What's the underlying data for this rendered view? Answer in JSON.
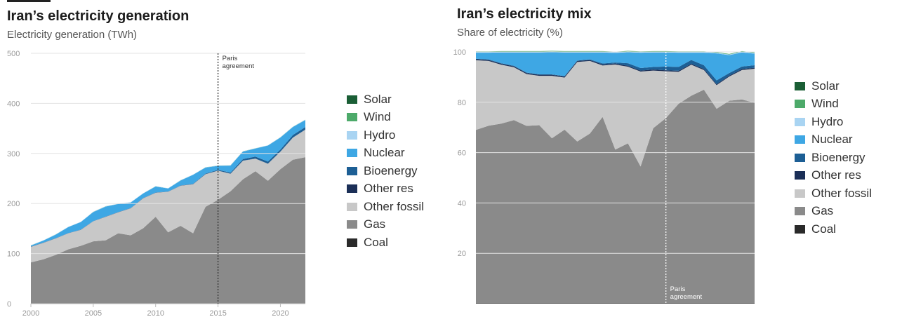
{
  "left_chart": {
    "title": "Iran’s electricity generation",
    "subtitle": "Electricity generation (TWh)"
  },
  "right_chart": {
    "title": "Iran’s electricity mix",
    "subtitle": "Share of electricity (%)"
  },
  "legend": [
    {
      "label": "Solar",
      "color": "#1a5e35"
    },
    {
      "label": "Wind",
      "color": "#4daa6a"
    },
    {
      "label": "Hydro",
      "color": "#a9d4f2"
    },
    {
      "label": "Nuclear",
      "color": "#3ea7e4"
    },
    {
      "label": "Bioenergy",
      "color": "#1d5f95"
    },
    {
      "label": "Other res",
      "color": "#1b2f57"
    },
    {
      "label": "Other fossil",
      "color": "#c8c8c8"
    },
    {
      "label": "Gas",
      "color": "#8a8a8a"
    },
    {
      "label": "Coal",
      "color": "#2a2a2a"
    }
  ],
  "chart_data": [
    {
      "type": "area",
      "title": "Iran’s electricity generation",
      "subtitle": "Electricity generation (TWh)",
      "xlabel": "",
      "ylabel": "",
      "x": [
        2000,
        2001,
        2002,
        2003,
        2004,
        2005,
        2006,
        2007,
        2008,
        2009,
        2010,
        2011,
        2012,
        2013,
        2014,
        2015,
        2016,
        2017,
        2018,
        2019,
        2020,
        2021,
        2022
      ],
      "xlim": [
        2000,
        2022
      ],
      "ylim": [
        0,
        500
      ],
      "x_ticks": [
        2000,
        2005,
        2010,
        2015,
        2020
      ],
      "y_ticks": [
        0,
        100,
        200,
        300,
        400,
        500
      ],
      "stack_order_bottom_to_top": [
        "Coal",
        "Gas",
        "Other fossil",
        "Other res",
        "Bioenergy",
        "Nuclear",
        "Hydro",
        "Wind",
        "Solar"
      ],
      "series": [
        {
          "name": "Coal",
          "color": "#2a2a2a",
          "values": [
            0.5,
            0.5,
            0.5,
            0.5,
            0.5,
            0.5,
            0.5,
            0.5,
            0.5,
            0.5,
            0.5,
            0.5,
            0.5,
            0.5,
            0.5,
            0.5,
            0.5,
            0.5,
            0.5,
            0.5,
            0.5,
            0.5,
            0.5
          ]
        },
        {
          "name": "Gas",
          "color": "#8a8a8a",
          "values": [
            82,
            88,
            97,
            108,
            115,
            124,
            126,
            140,
            136,
            150,
            173,
            142,
            155,
            140,
            193,
            207,
            224,
            248,
            264,
            245,
            268,
            287,
            292
          ]
        },
        {
          "name": "Other fossil",
          "color": "#c8c8c8",
          "values": [
            31,
            33,
            33,
            32,
            32,
            40,
            47,
            42,
            54,
            60,
            48,
            81,
            80,
            98,
            65,
            58,
            35,
            37,
            25,
            34,
            35,
            44,
            55
          ]
        },
        {
          "name": "Other res",
          "color": "#1b2f57",
          "values": [
            0.3,
            0.3,
            0.3,
            0.3,
            0.3,
            0.3,
            0.3,
            0.3,
            0.3,
            0.3,
            0.3,
            0.3,
            0.3,
            0.3,
            0.3,
            0.3,
            0.3,
            0.3,
            0.3,
            0.3,
            0.3,
            0.3,
            0.3
          ]
        },
        {
          "name": "Bioenergy",
          "color": "#1d5f95",
          "values": [
            0.2,
            0.2,
            0.2,
            0.2,
            0.2,
            0.2,
            0.2,
            0.2,
            0.2,
            0.2,
            0.2,
            0.2,
            0.2,
            0.5,
            1,
            1.5,
            2,
            3,
            4,
            4,
            4,
            5,
            5
          ]
        },
        {
          "name": "Nuclear",
          "color": "#3ea7e4",
          "values": [
            2,
            4,
            7,
            12,
            15,
            18,
            20,
            16,
            11,
            9,
            12,
            6,
            10,
            18,
            12,
            8,
            14,
            15,
            16,
            32,
            24,
            16,
            14
          ]
        },
        {
          "name": "Hydro",
          "color": "#a9d4f2",
          "values": [
            0.5,
            0.5,
            0.5,
            0.5,
            0.5,
            0.5,
            0.5,
            0.5,
            0.5,
            0.5,
            0.5,
            0.5,
            0.5,
            0.5,
            0.5,
            0.5,
            0.5,
            0.5,
            0.5,
            0.5,
            0.5,
            0.5,
            0.5
          ]
        },
        {
          "name": "Wind",
          "color": "#4daa6a",
          "values": [
            0.1,
            0.1,
            0.1,
            0.1,
            0.1,
            0.1,
            0.1,
            0.1,
            0.1,
            0.1,
            0.1,
            0.1,
            0.1,
            0.1,
            0.1,
            0.1,
            0.1,
            0.1,
            0.1,
            0.1,
            0.1,
            0.1,
            0.1
          ]
        },
        {
          "name": "Solar",
          "color": "#1a5e35",
          "values": [
            0,
            0,
            0,
            0,
            0,
            0,
            0,
            0,
            0,
            0,
            0,
            0,
            0,
            0,
            0,
            0,
            0,
            0,
            0,
            0,
            0,
            0,
            0
          ]
        }
      ],
      "annotation": {
        "label": "Paris agreement",
        "x": 2015
      },
      "grid": true,
      "legend_position": "right"
    },
    {
      "type": "area",
      "title": "Iran’s electricity mix",
      "subtitle": "Share of electricity (%)",
      "xlabel": "",
      "ylabel": "",
      "x": [
        2000,
        2001,
        2002,
        2003,
        2004,
        2005,
        2006,
        2007,
        2008,
        2009,
        2010,
        2011,
        2012,
        2013,
        2014,
        2015,
        2016,
        2017,
        2018,
        2019,
        2020,
        2021,
        2022
      ],
      "xlim": [
        2000,
        2022
      ],
      "ylim": [
        0,
        100
      ],
      "y_ticks": [
        20,
        40,
        60,
        80,
        100
      ],
      "stack_order_bottom_to_top": [
        "Coal",
        "Gas",
        "Other fossil",
        "Other res",
        "Bioenergy",
        "Nuclear",
        "Hydro",
        "Wind",
        "Solar"
      ],
      "series": [
        {
          "name": "Coal",
          "color": "#2a2a2a",
          "values": [
            0.2,
            0.2,
            0.2,
            0.2,
            0.2,
            0.2,
            0.2,
            0.2,
            0.2,
            0.2,
            0.2,
            0.2,
            0.2,
            0.2,
            0.2,
            0.2,
            0.2,
            0.2,
            0.2,
            0.2,
            0.2,
            0.2,
            0.2
          ]
        },
        {
          "name": "Gas",
          "color": "#8a8a8a",
          "values": [
            68.8,
            70.5,
            71.3,
            72.7,
            70.4,
            70.7,
            65.5,
            68.9,
            64.2,
            67.4,
            74,
            61,
            63.5,
            54.3,
            69.5,
            73.5,
            79.2,
            82.4,
            84.8,
            77.2,
            80.4,
            80.9,
            79.6
          ]
        },
        {
          "name": "Other fossil",
          "color": "#c8c8c8",
          "values": [
            27.7,
            25.7,
            23.4,
            21,
            20.6,
            19.6,
            24.8,
            20.7,
            31.6,
            28.8,
            20.4,
            33.8,
            30.4,
            37.7,
            22.9,
            18.6,
            12.7,
            12.3,
            7.8,
            9.4,
            9.6,
            11.7,
            13.5
          ]
        },
        {
          "name": "Other res",
          "color": "#1b2f57",
          "values": [
            0.4,
            0.4,
            0.4,
            0.4,
            0.4,
            0.4,
            0.4,
            0.4,
            0.4,
            0.4,
            0.4,
            0.4,
            0.4,
            0.4,
            0.4,
            0.4,
            0.4,
            0.4,
            0.4,
            0.4,
            0.4,
            0.4,
            0.4
          ]
        },
        {
          "name": "Bioenergy",
          "color": "#1d5f95",
          "values": [
            0.2,
            0.2,
            0.2,
            0.2,
            0.2,
            0.2,
            0.2,
            0.2,
            0.2,
            0.2,
            0.4,
            0.4,
            1,
            1,
            1,
            1.5,
            1.5,
            1.5,
            1.5,
            1.5,
            1,
            1,
            1
          ]
        },
        {
          "name": "Nuclear",
          "color": "#3ea7e4",
          "values": [
            2.4,
            2.7,
            4.3,
            5.3,
            8,
            8.7,
            8.8,
            9.4,
            3.2,
            2.8,
            4.4,
            3.8,
            4.4,
            6.1,
            5.8,
            5.6,
            5.7,
            2.9,
            5,
            10.7,
            7.1,
            5.6,
            4.6
          ]
        },
        {
          "name": "Hydro",
          "color": "#a9d4f2",
          "values": [
            0.3,
            0.3,
            0.3,
            0.3,
            0.3,
            0.3,
            0.3,
            0.3,
            0.3,
            0.3,
            0.3,
            0.3,
            0.3,
            0.3,
            0.3,
            0.3,
            0.3,
            0.3,
            0.3,
            0.3,
            0.3,
            0.3,
            0.3
          ]
        },
        {
          "name": "Wind",
          "color": "#4daa6a",
          "values": [
            0.2,
            0.2,
            0.2,
            0.2,
            0.2,
            0.2,
            0.2,
            0.2,
            0.2,
            0.2,
            0.2,
            0.2,
            0.2,
            0.2,
            0.2,
            0.2,
            0.2,
            0.2,
            0.2,
            0.2,
            0.2,
            0.2,
            0.2
          ]
        },
        {
          "name": "Solar",
          "color": "#1a5e35",
          "values": [
            0,
            0,
            0,
            0,
            0,
            0,
            0,
            0,
            0,
            0,
            0,
            0,
            0,
            0,
            0,
            0,
            0,
            0,
            0,
            0,
            0,
            0,
            0
          ]
        }
      ],
      "annotation": {
        "label": "Paris agreement",
        "x": 2015
      },
      "grid": true,
      "legend_position": "right"
    }
  ]
}
